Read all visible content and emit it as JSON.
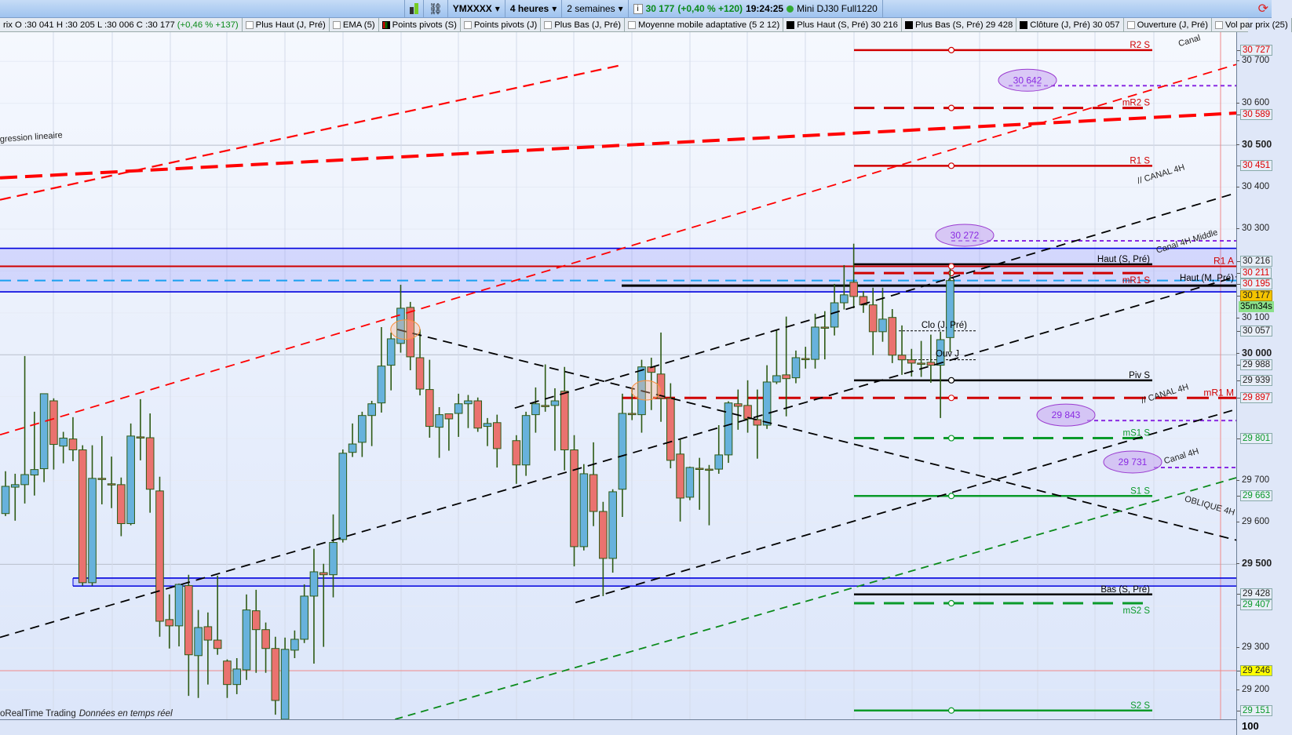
{
  "toolbar": {
    "symbol": "YMXXXX",
    "timeframe": "4 heures",
    "period": "2 semaines",
    "last_price": "30 177",
    "change": "(+0,40 % +120)",
    "time": "19:24:25",
    "instrument": "Mini DJ30 Full1220",
    "icons": [
      "candlestick-icon",
      "link-icon",
      "info-icon",
      "status-dot-icon",
      "refresh-icon"
    ]
  },
  "legend": {
    "ohlc": "rix O :30 041 H :30 205 L :30 006 C :30 177",
    "ohlc_change": "(+0,46 % +137)",
    "items": [
      {
        "label": "Plus Haut (J, Pré)",
        "box": "empty"
      },
      {
        "label": "EMA (5)",
        "box": "empty"
      },
      {
        "label": "Points pivots (S)",
        "box": "pivot"
      },
      {
        "label": "Points pivots (J)",
        "box": "empty"
      },
      {
        "label": "Plus Bas (J, Pré)",
        "box": "empty"
      },
      {
        "label": "Moyenne mobile adaptative (5 2 12)",
        "box": "empty"
      },
      {
        "label": "Plus Haut (S, Pré)  30 216",
        "box": "black"
      },
      {
        "label": "Plus Bas (S, Pré)  29 428",
        "box": "black"
      },
      {
        "label": "Clôture (J, Pré)  30 057",
        "box": "black"
      },
      {
        "label": "Ouverture (J, Pré)",
        "box": "empty"
      },
      {
        "label": "Vol par prix (25)",
        "box": "empty"
      }
    ]
  },
  "chart_data": {
    "type": "candlestick",
    "timeframe": "4 heures",
    "ylim": [
      29120,
      30790
    ],
    "grid": true,
    "candle_fields": [
      "open",
      "high",
      "low",
      "close"
    ],
    "candles": [
      [
        29621,
        29722,
        29615,
        29686
      ],
      [
        29684,
        29716,
        29604,
        29690
      ],
      [
        29690,
        29997,
        29645,
        29714
      ],
      [
        29713,
        29864,
        29664,
        29726
      ],
      [
        29728,
        29907,
        29696,
        29907
      ],
      [
        29890,
        29896,
        29726,
        29786
      ],
      [
        29782,
        29816,
        29741,
        29801
      ],
      [
        29799,
        29851,
        29746,
        29773
      ],
      [
        29773,
        29784,
        29449,
        29456
      ],
      [
        29456,
        29784,
        29449,
        29705
      ],
      [
        29705,
        29806,
        29643,
        29703
      ],
      [
        29692,
        29757,
        29634,
        29690
      ],
      [
        29690,
        29707,
        29567,
        29597
      ],
      [
        29597,
        29836,
        29593,
        29806
      ],
      [
        29804,
        29894,
        29748,
        29802
      ],
      [
        29802,
        29860,
        29623,
        29679
      ],
      [
        29675,
        29709,
        29327,
        29364
      ],
      [
        29368,
        29428,
        29299,
        29353
      ],
      [
        29353,
        29454,
        29304,
        29452
      ],
      [
        29449,
        29475,
        29186,
        29284
      ],
      [
        29282,
        29391,
        29181,
        29349
      ],
      [
        29351,
        29385,
        29213,
        29319
      ],
      [
        29319,
        29473,
        29284,
        29299
      ],
      [
        29269,
        29273,
        29181,
        29213
      ],
      [
        29213,
        29276,
        29190,
        29250
      ],
      [
        29248,
        29428,
        29224,
        29391
      ],
      [
        29389,
        29439,
        29241,
        29344
      ],
      [
        29344,
        29361,
        29241,
        29299
      ],
      [
        29299,
        29327,
        29141,
        29175
      ],
      [
        29130,
        29325,
        29130,
        29297
      ],
      [
        29295,
        29342,
        29276,
        29321
      ],
      [
        29321,
        29452,
        29312,
        29424
      ],
      [
        29424,
        29537,
        29263,
        29482
      ],
      [
        29480,
        29501,
        29303,
        29475
      ],
      [
        29475,
        29619,
        29421,
        29552
      ],
      [
        29559,
        29774,
        29552,
        29765
      ],
      [
        29767,
        29836,
        29756,
        29787
      ],
      [
        29791,
        29864,
        29756,
        29855
      ],
      [
        29855,
        29890,
        29782,
        29883
      ],
      [
        29885,
        30066,
        29862,
        29973
      ],
      [
        29975,
        30053,
        29915,
        30038
      ],
      [
        30027,
        30167,
        30005,
        30111
      ],
      [
        30113,
        30126,
        29963,
        29995
      ],
      [
        29993,
        30061,
        29903,
        29918
      ],
      [
        29917,
        29988,
        29802,
        29829
      ],
      [
        29827,
        29875,
        29754,
        29857
      ],
      [
        29859,
        29859,
        29771,
        29847
      ],
      [
        29860,
        29907,
        29804,
        29883
      ],
      [
        29883,
        29904,
        29825,
        29890
      ],
      [
        29890,
        29898,
        29816,
        29825
      ],
      [
        29829,
        29849,
        29782,
        29836
      ],
      [
        29838,
        29857,
        29731,
        29776
      ],
      null,
      [
        29795,
        29808,
        29692,
        29737
      ],
      [
        29737,
        29864,
        29711,
        29855
      ],
      [
        29857,
        29922,
        29814,
        29883
      ],
      [
        29879,
        29977,
        29864,
        29877
      ],
      [
        29879,
        29920,
        29771,
        29890
      ],
      [
        29913,
        29971,
        29724,
        29773
      ],
      [
        29773,
        29808,
        29495,
        29542
      ],
      [
        29542,
        29739,
        29533,
        29716
      ],
      [
        29714,
        29791,
        29591,
        29626
      ],
      [
        29626,
        29649,
        29424,
        29514
      ],
      [
        29514,
        29679,
        29480,
        29673
      ],
      [
        29679,
        29907,
        29613,
        29860
      ],
      [
        29860,
        29918,
        29844,
        29857
      ],
      [
        29857,
        29988,
        29814,
        29971
      ],
      [
        29971,
        29993,
        29868,
        29958
      ],
      [
        29954,
        30053,
        29840,
        29896
      ],
      [
        29896,
        29932,
        29729,
        29748
      ],
      [
        29763,
        29799,
        29602,
        29658
      ],
      [
        29660,
        29733,
        29653,
        29731
      ],
      [
        29729,
        29754,
        29630,
        29727
      ],
      [
        29727,
        29737,
        29593,
        29726
      ],
      [
        29727,
        29832,
        29716,
        29761
      ],
      [
        29761,
        29889,
        29742,
        29885
      ],
      [
        29883,
        29917,
        29821,
        29877
      ],
      [
        29879,
        29939,
        29814,
        29847
      ],
      [
        29845,
        29917,
        29752,
        29832
      ],
      [
        29832,
        29975,
        29823,
        29935
      ],
      [
        29935,
        30059,
        29930,
        29950
      ],
      [
        29952,
        30091,
        29853,
        29943
      ],
      [
        29945,
        30010,
        29932,
        29993
      ],
      [
        29991,
        30019,
        29967,
        29989
      ],
      [
        29989,
        30098,
        29967,
        30066
      ],
      [
        30066,
        30104,
        29989,
        30064
      ],
      [
        30066,
        30169,
        30046,
        30124
      ],
      [
        30124,
        30214,
        30108,
        30143
      ],
      [
        30173,
        30265,
        30111,
        30139
      ],
      [
        30139,
        30152,
        30100,
        30119
      ],
      [
        30119,
        30160,
        29999,
        30055
      ],
      [
        30055,
        30160,
        30031,
        30085
      ],
      [
        30089,
        30109,
        29980,
        29999
      ],
      [
        29999,
        30070,
        29952,
        29988
      ],
      [
        29988,
        30014,
        29948,
        29980
      ],
      [
        29980,
        30033,
        29947,
        29978
      ],
      [
        29982,
        30048,
        29933,
        29975
      ],
      [
        29975,
        30055,
        29849,
        30036
      ],
      [
        30041,
        30205,
        30006,
        30177
      ]
    ],
    "colors": {
      "up": "#67b2dc",
      "down": "#ea726f",
      "wick": "#2d5a14"
    },
    "levels": [
      {
        "label": "R2 S",
        "price": 30727,
        "color": "#d00000",
        "style": "solid",
        "marker": true
      },
      {
        "label": "mR2 S",
        "price": 30589,
        "color": "#d00000",
        "style": "dash",
        "marker": true
      },
      {
        "label": "R1 S",
        "price": 30451,
        "color": "#d00000",
        "style": "solid",
        "marker": true
      },
      {
        "label": "Haut (S, Pré)",
        "price": 30216,
        "color": "#000000",
        "style": "solid",
        "marker": false
      },
      {
        "label": "mR1 S",
        "price": 30195,
        "color": "#d00000",
        "style": "dash",
        "marker": true
      },
      {
        "label": "Piv S",
        "price": 29939,
        "color": "#000000",
        "style": "solid",
        "marker": true
      },
      {
        "label": "mS1 S",
        "price": 29801,
        "color": "#0a9a2a",
        "style": "dash",
        "marker": true
      },
      {
        "label": "S1 S",
        "price": 29663,
        "color": "#0a9a2a",
        "style": "solid",
        "marker": true
      },
      {
        "label": "Bas (S, Pré)",
        "price": 29428,
        "color": "#000000",
        "style": "solid",
        "marker": false
      },
      {
        "label": "mS2 S",
        "price": 29407,
        "color": "#0a9a2a",
        "style": "dash",
        "marker": true
      },
      {
        "label": "S2 S",
        "price": 29151,
        "color": "#0a9a2a",
        "style": "solid",
        "marker": true
      }
    ],
    "wide_levels": [
      {
        "label": "R1 A",
        "price": 30211,
        "color": "#d00000",
        "style": "solid"
      },
      {
        "label": "Haut (M, Pré)",
        "price": 30165,
        "color": "#000000",
        "style": "thick"
      },
      {
        "label": "mR1 M",
        "price": 29897,
        "color": "#d00000",
        "style": "dash"
      }
    ],
    "day_levels": [
      {
        "label": "Clo (J, Pré)",
        "price": 30057
      },
      {
        "label": "Ouv J",
        "price": 29988
      }
    ],
    "current_price_line": 30177,
    "zones": [
      {
        "from": 30150,
        "to": 30254,
        "color": "#0000dd"
      },
      {
        "from": 29448,
        "to": 29467,
        "color": "#0000dd"
      }
    ],
    "alert_line": 29246,
    "price_bubbles": [
      {
        "label": "30 642",
        "price": 30642
      },
      {
        "label": "30 272",
        "price": 30272
      },
      {
        "label": "29 843",
        "price": 29843
      },
      {
        "label": "29 731",
        "price": 29731
      }
    ],
    "trendline_labels": [
      "Canal",
      "gression lineaire",
      "// CANAL 4H",
      "Canal 4H Middle",
      "// CANAL 4H",
      "Canal 4H",
      "OBLIQUE 4H"
    ],
    "axis_labels": [
      {
        "t": "30 727",
        "p": 30727,
        "s": "red"
      },
      {
        "t": "30 700",
        "p": 30700,
        "s": ""
      },
      {
        "t": "30 600",
        "p": 30600,
        "s": ""
      },
      {
        "t": "30 589",
        "p": 30589,
        "s": "red"
      },
      {
        "t": "30 500",
        "p": 30500,
        "s": "bold"
      },
      {
        "t": "30 451",
        "p": 30451,
        "s": "red"
      },
      {
        "t": "30 400",
        "p": 30400,
        "s": ""
      },
      {
        "t": "30 300",
        "p": 30300,
        "s": ""
      },
      {
        "t": "30 216",
        "p": 30223,
        "s": "box"
      },
      {
        "t": "30 211",
        "p": 30206,
        "s": "red"
      },
      {
        "t": "30 195",
        "p": 30189,
        "s": "red"
      },
      {
        "t": "30 177",
        "p": 30170,
        "s": "orange"
      },
      {
        "t": "30 100",
        "p": 30100,
        "s": ""
      },
      {
        "t": "30 000",
        "p": 30003,
        "s": "bold"
      },
      {
        "t": "30 057",
        "p": 30057,
        "s": "box"
      },
      {
        "t": "29 988",
        "p": 29985,
        "s": "box"
      },
      {
        "t": "29 939",
        "p": 29939,
        "s": "box"
      },
      {
        "t": "29 897",
        "p": 29897,
        "s": "red"
      },
      {
        "t": "29 801",
        "p": 29801,
        "s": "green"
      },
      {
        "t": "29 700",
        "p": 29700,
        "s": ""
      },
      {
        "t": "29 663",
        "p": 29663,
        "s": "green"
      },
      {
        "t": "29 600",
        "p": 29600,
        "s": ""
      },
      {
        "t": "29 500",
        "p": 29500,
        "s": "bold"
      },
      {
        "t": "29 428",
        "p": 29430,
        "s": "box"
      },
      {
        "t": "29 407",
        "p": 29403,
        "s": "green"
      },
      {
        "t": "29 300",
        "p": 29300,
        "s": ""
      },
      {
        "t": "29 246",
        "p": 29246,
        "s": "yellow"
      },
      {
        "t": "29 200",
        "p": 29200,
        "s": ""
      },
      {
        "t": "29 151",
        "p": 29151,
        "s": "green"
      }
    ],
    "timer": "35m34s",
    "volume_axis_label": "100"
  },
  "footer": {
    "brand": "oRealTime Trading",
    "note": "Données en temps réel"
  }
}
